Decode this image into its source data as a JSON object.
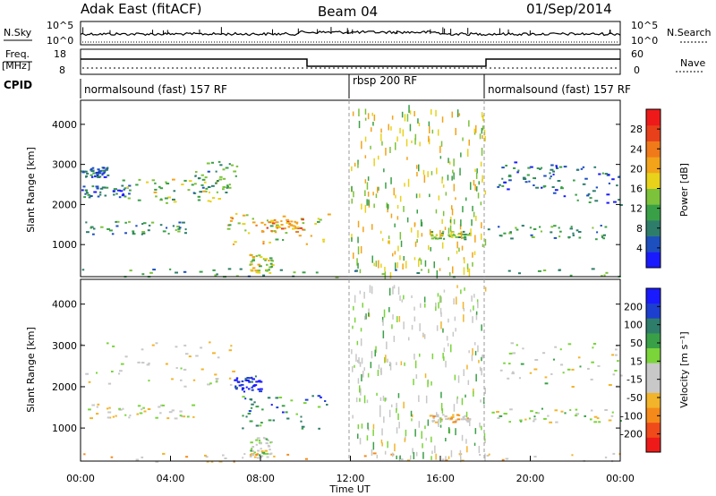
{
  "header": {
    "station": "Adak East (fitACF)",
    "beam": "Beam 04",
    "date": "01/Sep/2014"
  },
  "ancillary": {
    "nsky_label": "N.Sky",
    "nsearch_label": "N.Search",
    "count_ticks": [
      "10^5",
      "10^0"
    ],
    "freq_label_top": "Freq.",
    "freq_label_unit": "[MHz]",
    "freq_ticks": [
      "18",
      "8"
    ],
    "nave_label": "Nave",
    "nave_ticks": [
      "60",
      "0"
    ],
    "cpid_label": "CPID",
    "cpid_segments": [
      {
        "label": "normalsound (fast) 157 RF",
        "start_h": 0,
        "end_h": 12
      },
      {
        "label": "rbsp 200 RF",
        "start_h": 12,
        "end_h": 18
      },
      {
        "label": "normalsound (fast) 157 RF",
        "start_h": 18,
        "end_h": 24
      }
    ]
  },
  "chart_data": [
    {
      "type": "heatmap",
      "name": "power-panel",
      "ylabel": "Slant Range [km]",
      "xlim": [
        0,
        24
      ],
      "ylim": [
        200,
        4600
      ],
      "y_ticks": [
        "4000",
        "3000",
        "2000",
        "1000"
      ],
      "colorbar": {
        "label": "Power [dB]",
        "ticks": [
          "28",
          "24",
          "20",
          "16",
          "12",
          "8",
          "4"
        ],
        "colors": [
          "#1a1aff",
          "#1d4fbf",
          "#2e7d6b",
          "#3aa047",
          "#7cc23a",
          "#e8d21a",
          "#f2a31a",
          "#f07a1a",
          "#e8401a",
          "#ee1a1a"
        ],
        "range": [
          0,
          30
        ]
      },
      "blobs": [
        {
          "t0": 0.0,
          "t1": 2.2,
          "r0": 2200,
          "r1": 2500,
          "level": 0.25
        },
        {
          "t0": 1.8,
          "t1": 6.5,
          "r0": 2000,
          "r1": 2650,
          "level": 0.45
        },
        {
          "t0": 5.0,
          "t1": 7.0,
          "r0": 2300,
          "r1": 3100,
          "level": 0.35
        },
        {
          "t0": 0.0,
          "t1": 1.2,
          "r0": 2700,
          "r1": 2950,
          "level": 0.2
        },
        {
          "t0": 0.2,
          "t1": 5.0,
          "r0": 1250,
          "r1": 1600,
          "level": 0.3
        },
        {
          "t0": 6.5,
          "t1": 11.0,
          "r0": 1000,
          "r1": 1800,
          "level": 0.55
        },
        {
          "t0": 8.0,
          "t1": 10.0,
          "r0": 1300,
          "r1": 1650,
          "level": 0.7
        },
        {
          "t0": 7.5,
          "t1": 8.5,
          "r0": 300,
          "r1": 800,
          "level": 0.5
        },
        {
          "t0": 15.5,
          "t1": 17.3,
          "r0": 1150,
          "r1": 1350,
          "level": 0.4
        },
        {
          "t0": 18.0,
          "t1": 24.0,
          "r0": 1150,
          "r1": 1500,
          "level": 0.3
        },
        {
          "t0": 18.5,
          "t1": 21.0,
          "r0": 2400,
          "r1": 3100,
          "level": 0.2
        },
        {
          "t0": 21.0,
          "t1": 24.0,
          "r0": 2000,
          "r1": 3000,
          "level": 0.2
        },
        {
          "t0": 0.0,
          "t1": 24.0,
          "r0": 200,
          "r1": 420,
          "level": 0.3
        },
        {
          "t0": 12.0,
          "t1": 18.0,
          "r0": 300,
          "r1": 4500,
          "level": 0.5,
          "sparse": true
        }
      ]
    },
    {
      "type": "heatmap",
      "name": "velocity-panel",
      "ylabel": "Slant Range [km]",
      "xlabel": "Time UT",
      "xlim": [
        0,
        24
      ],
      "ylim": [
        200,
        4600
      ],
      "x_ticks": [
        "00:00",
        "04:00",
        "08:00",
        "12:00",
        "16:00",
        "20:00",
        "00:00"
      ],
      "y_ticks": [
        "4000",
        "3000",
        "2000",
        "1000"
      ],
      "colorbar": {
        "label": "Velocity [m s⁻¹]",
        "ticks": [
          "200",
          "100",
          "50",
          "15",
          "-15",
          "-50",
          "-100",
          "-200"
        ],
        "colors": [
          "#ee1a1a",
          "#f04a1a",
          "#f58a1a",
          "#f2b42a",
          "#c8c8c8",
          "#c8c8c8",
          "#7ad43a",
          "#3aa047",
          "#2e7d6b",
          "#1d3fcf",
          "#1a1aff"
        ],
        "range": [
          -250,
          250
        ]
      },
      "blobs": [
        {
          "t0": 0.0,
          "t1": 7.0,
          "r0": 2000,
          "r1": 3100,
          "level": 0.45
        },
        {
          "t0": 0.2,
          "t1": 5.0,
          "r0": 1250,
          "r1": 1600,
          "level": 0.45
        },
        {
          "t0": 6.8,
          "t1": 8.0,
          "r0": 1900,
          "r1": 2300,
          "level": 0.95
        },
        {
          "t0": 7.0,
          "t1": 11.0,
          "r0": 1000,
          "r1": 1800,
          "level": 0.75
        },
        {
          "t0": 7.5,
          "t1": 8.5,
          "r0": 300,
          "r1": 800,
          "level": 0.5
        },
        {
          "t0": 15.5,
          "t1": 17.3,
          "r0": 1150,
          "r1": 1350,
          "level": 0.35
        },
        {
          "t0": 18.0,
          "t1": 24.0,
          "r0": 1150,
          "r1": 1500,
          "level": 0.5
        },
        {
          "t0": 18.5,
          "t1": 24.0,
          "r0": 2000,
          "r1": 3100,
          "level": 0.5
        },
        {
          "t0": 0.0,
          "t1": 24.0,
          "r0": 200,
          "r1": 420,
          "level": 0.35
        },
        {
          "t0": 12.0,
          "t1": 18.0,
          "r0": 300,
          "r1": 4500,
          "level": 0.5,
          "sparse": true
        }
      ]
    }
  ]
}
